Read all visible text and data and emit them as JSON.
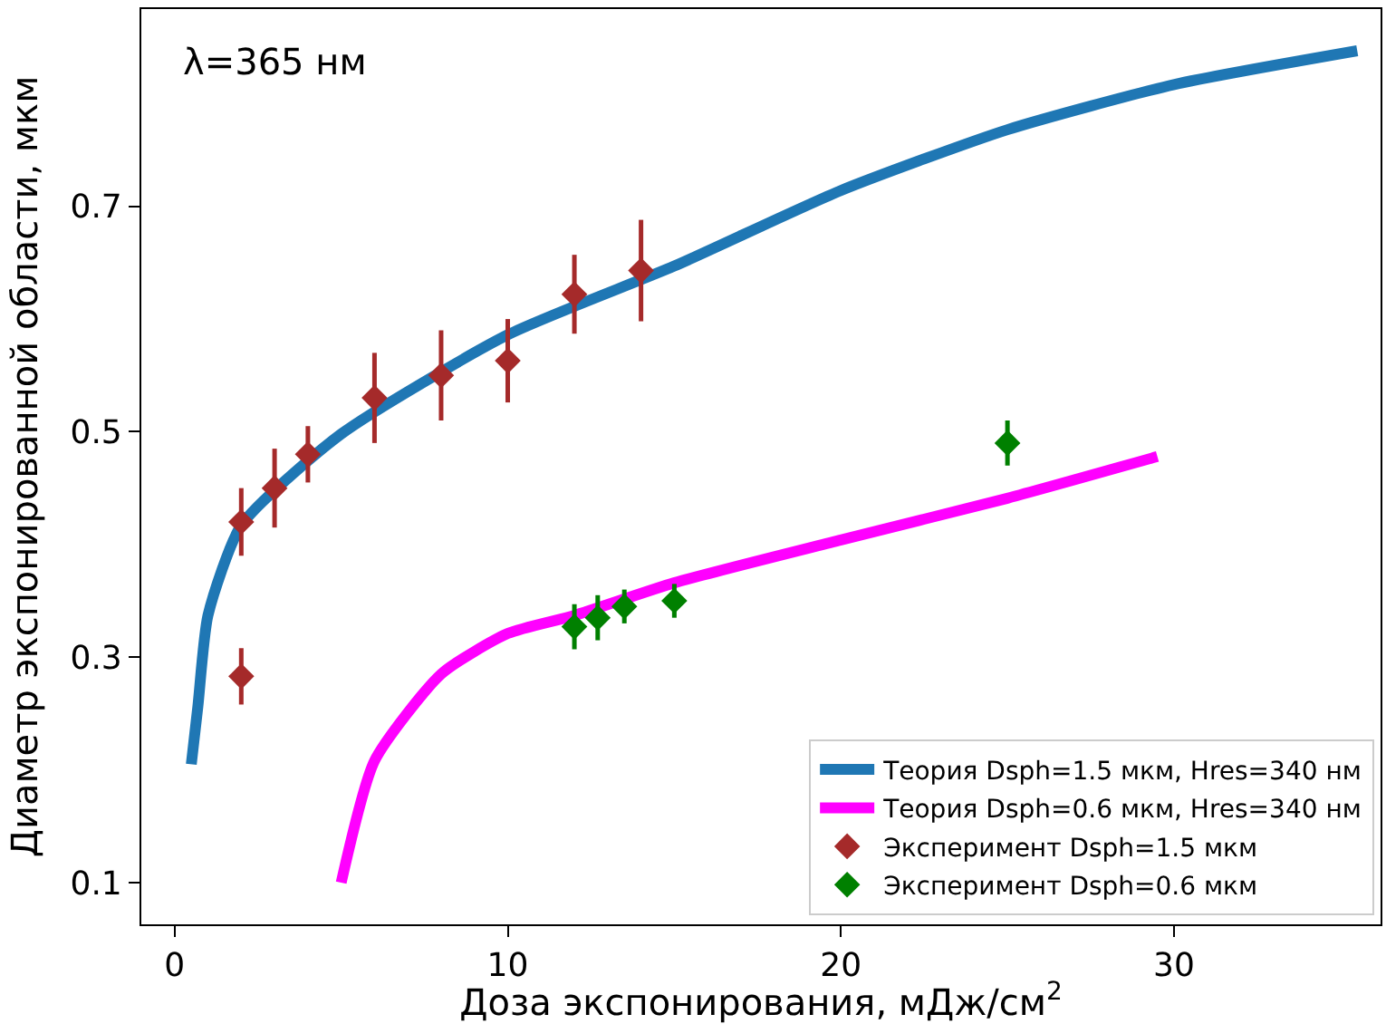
{
  "chart_data": {
    "type": "line",
    "xlabel": "Доза экспонирования, мДж/см$^{2}$",
    "ylabel": "Диаметр экспонированной области, мкм",
    "annotations": [
      "λ=365 нм"
    ],
    "xlim": [
      -1,
      36.2
    ],
    "ylim": [
      0.063,
      0.875
    ],
    "xticks": [
      0,
      10,
      20,
      30
    ],
    "yticks": [
      0.1,
      0.3,
      0.5,
      0.7
    ],
    "grid": false,
    "legend": "bottom right",
    "series": [
      {
        "name": "Теория Dsph=1.5 мкм, Hres=340 нм",
        "color": "#1f77b4",
        "marker": "none",
        "line_style": "solid",
        "x": [
          0.5,
          0.7,
          1,
          2,
          5,
          10,
          15,
          20,
          25,
          30,
          35.5
        ],
        "values": [
          0.205,
          0.257,
          0.337,
          0.417,
          0.498,
          0.586,
          0.647,
          0.714,
          0.768,
          0.808,
          0.838
        ]
      },
      {
        "name": "Теория Dsph=0.6 мкм, Hres=340 нм",
        "color": "#ff00ff",
        "marker": "none",
        "line_style": "solid",
        "x": [
          5,
          6,
          8,
          10,
          12,
          15,
          20,
          25,
          29.5
        ],
        "values": [
          0.1,
          0.208,
          0.285,
          0.321,
          0.337,
          0.366,
          0.404,
          0.441,
          0.478
        ]
      },
      {
        "name": "Эксперимент Dsph=1.5 мкм",
        "type": "scatter",
        "color": "#a52a2a",
        "marker": "diamond",
        "x": [
          2,
          2,
          3,
          4,
          6,
          8,
          10,
          12,
          14
        ],
        "values": [
          0.283,
          0.42,
          0.45,
          0.48,
          0.53,
          0.55,
          0.563,
          0.622,
          0.643
        ],
        "errors": [
          0.025,
          0.03,
          0.035,
          0.025,
          0.04,
          0.04,
          0.037,
          0.035,
          0.045
        ]
      },
      {
        "name": "Эксперимент Dsph=0.6 мкм",
        "type": "scatter",
        "color": "#008000",
        "marker": "diamond",
        "x": [
          12,
          12.7,
          13.5,
          15,
          25
        ],
        "values": [
          0.327,
          0.335,
          0.345,
          0.35,
          0.49
        ],
        "errors": [
          0.02,
          0.02,
          0.015,
          0.015,
          0.02
        ]
      }
    ]
  }
}
